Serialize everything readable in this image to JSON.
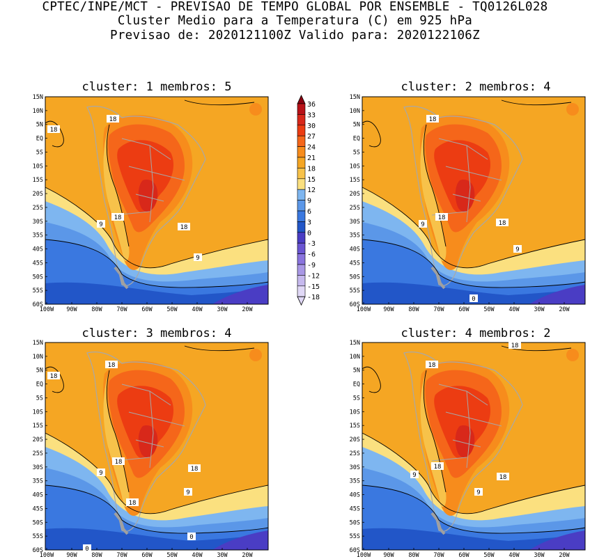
{
  "header": {
    "line1": "CPTEC/INPE/MCT - PREVISAO DE TEMPO GLOBAL POR ENSEMBLE - TQ0126L028",
    "line2": "Cluster Medio para a Temperatura (C) em 925 hPa",
    "line3": "Previsao de: 2020121100Z   Valido para: 2020122106Z"
  },
  "axes": {
    "lat_labels": [
      "15N",
      "10N",
      "5N",
      "EQ",
      "5S",
      "10S",
      "15S",
      "20S",
      "25S",
      "30S",
      "35S",
      "40S",
      "45S",
      "50S",
      "55S",
      "60S"
    ],
    "lon_labels": [
      "100W",
      "90W",
      "80W",
      "70W",
      "60W",
      "50W",
      "40W",
      "30W",
      "20W"
    ]
  },
  "colorbar": {
    "labels": [
      "36",
      "33",
      "30",
      "27",
      "24",
      "21",
      "18",
      "15",
      "12",
      "9",
      "6",
      "3",
      "0",
      "-3",
      "-6",
      "-9",
      "-12",
      "-15",
      "-18"
    ],
    "colors": [
      "#8a0010",
      "#b81218",
      "#d8281a",
      "#ec3c12",
      "#f5661a",
      "#f78c1c",
      "#f5a623",
      "#f7c24a",
      "#fbe07f",
      "#7eb6f0",
      "#5b97e8",
      "#3a78e0",
      "#2256c8",
      "#4a3dc4",
      "#6a55d2",
      "#8a74de",
      "#a998e6",
      "#c6b9ee",
      "#e0d8f6"
    ]
  },
  "panels": [
    {
      "title": "cluster: 1   membros: 5",
      "contour_labels": [
        "18",
        "18",
        "18",
        "18",
        "9",
        "9"
      ]
    },
    {
      "title": "cluster: 2   membros: 4",
      "contour_labels": [
        "18",
        "18",
        "18",
        "9",
        "9",
        "0"
      ]
    },
    {
      "title": "cluster: 3   membros: 4",
      "contour_labels": [
        "18",
        "18",
        "18",
        "18",
        "18",
        "9",
        "9",
        "0",
        "0"
      ]
    },
    {
      "title": "cluster: 4   membros: 2",
      "contour_labels": [
        "18",
        "18",
        "18",
        "18",
        "9",
        "9"
      ]
    }
  ]
}
